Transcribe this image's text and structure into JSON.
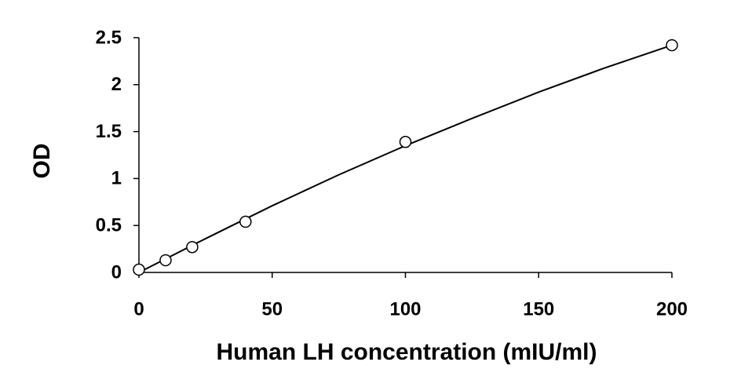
{
  "chart_data": {
    "type": "scatter",
    "xlabel": "Human LH concentration (mIU/ml)",
    "ylabel": "OD",
    "xlim": [
      0,
      200
    ],
    "xticks": [
      0,
      50,
      100,
      150,
      200
    ],
    "ylim": [
      0,
      2.5
    ],
    "yticks": [
      0,
      0.5,
      1,
      1.5,
      2,
      2.5
    ],
    "series": [
      {
        "type": "scatter",
        "color": "#000000",
        "x": [
          0,
          10,
          20,
          40,
          100,
          200
        ],
        "values": [
          0.03,
          0.13,
          0.27,
          0.54,
          1.39,
          2.42
        ]
      },
      {
        "type": "line",
        "color": "#000000",
        "x": [
          0,
          25,
          50,
          75,
          100,
          125,
          150,
          175,
          200
        ],
        "values": [
          0,
          0.36,
          0.71,
          1.04,
          1.35,
          1.64,
          1.92,
          2.18,
          2.42
        ]
      }
    ]
  }
}
